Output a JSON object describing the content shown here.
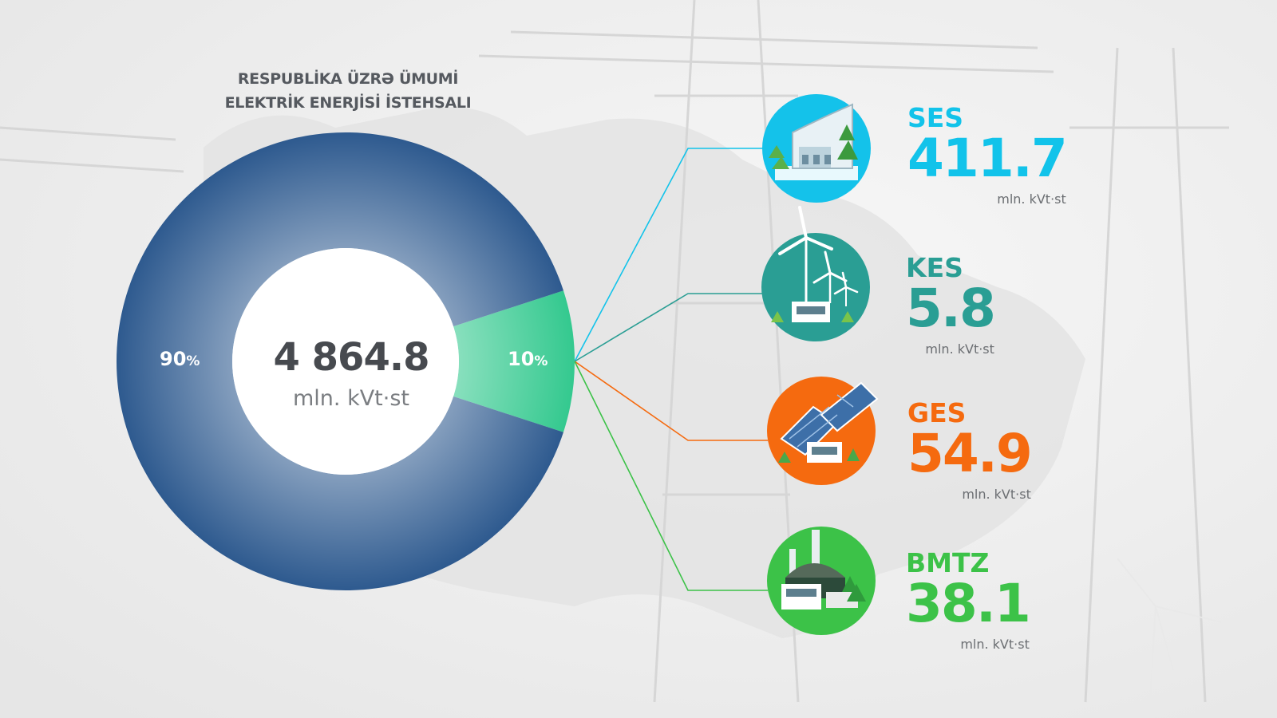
{
  "title_lines": [
    "RESPUBLİKA ÜZRƏ ÜMUMİ",
    "ELEKTRİK ENERJİSİ İSTEHSALI"
  ],
  "total": {
    "value": "4 864.8",
    "unit": "mln. kVt·st"
  },
  "chart_data": {
    "type": "pie",
    "title": "RESPUBLİKA ÜZRƏ ÜMUMİ ELEKTRİK ENERJİSİ İSTEHSALI",
    "slices": [
      {
        "label": "90%",
        "value": 90,
        "color": "#2e5a8f"
      },
      {
        "label": "10%",
        "value": 10,
        "color": "#34c98f"
      }
    ],
    "sources": [
      {
        "code": "SES",
        "value": 411.7,
        "value_text": "411.7",
        "unit": "mln. kVt·st",
        "color": "#12c3ea",
        "icon": "hydro-plant-icon"
      },
      {
        "code": "KES",
        "value": 5.8,
        "value_text": "5.8",
        "unit": "mln. kVt·st",
        "color": "#2a9e94",
        "icon": "wind-turbine-icon"
      },
      {
        "code": "GES",
        "value": 54.9,
        "value_text": "54.9",
        "unit": "mln. kVt·st",
        "color": "#f56a0f",
        "icon": "solar-panel-icon"
      },
      {
        "code": "BMTZ",
        "value": 38.1,
        "value_text": "38.1",
        "unit": "mln. kVt·st",
        "color": "#3cc248",
        "icon": "biomass-plant-icon"
      }
    ]
  }
}
